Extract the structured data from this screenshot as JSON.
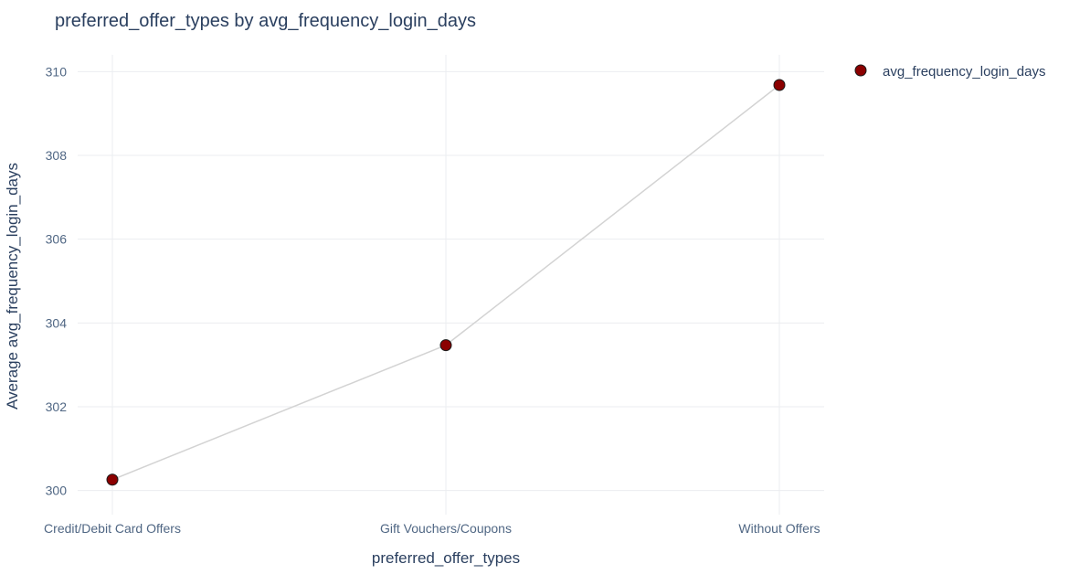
{
  "chart_data": {
    "type": "line",
    "title": "preferred_offer_types by avg_frequency_login_days",
    "xlabel": "preferred_offer_types",
    "ylabel": "Average avg_frequency_login_days",
    "categories": [
      "Credit/Debit Card Offers",
      "Gift Vouchers/Coupons",
      "Without Offers"
    ],
    "series": [
      {
        "name": "avg_frequency_login_days",
        "values": [
          300.26,
          303.47,
          309.68
        ]
      }
    ],
    "ylim": [
      299.6,
      310.4
    ],
    "yticks": [
      300,
      302,
      304,
      306,
      308,
      310
    ],
    "grid": true,
    "legend": "top-right",
    "colors": {
      "marker_fill": "#8b0000",
      "marker_stroke": "#1a1a1a",
      "line": "#d3d3d3",
      "grid": "#ebedf0",
      "text": "#2a3f5f",
      "tick_text": "#506784"
    }
  }
}
